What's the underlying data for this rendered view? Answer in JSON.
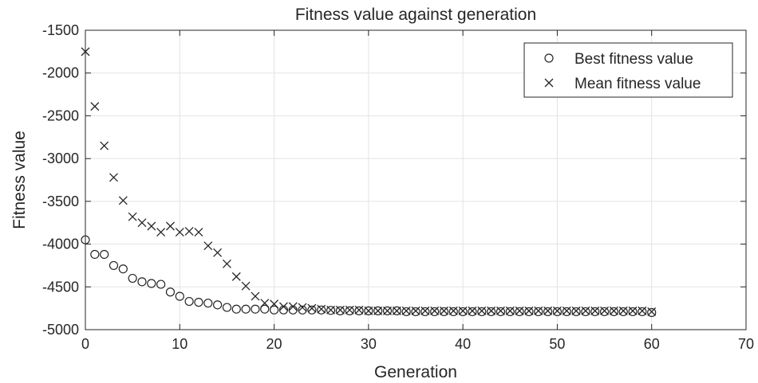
{
  "chart_data": {
    "type": "scatter",
    "title": "Fitness value against generation",
    "xlabel": "Generation",
    "ylabel": "Fitness value",
    "xlim": [
      0,
      70
    ],
    "ylim": [
      -5000,
      -1500
    ],
    "xticks": [
      "0",
      "10",
      "20",
      "30",
      "40",
      "50",
      "60",
      "70"
    ],
    "yticks": [
      "-5000",
      "-4500",
      "-4000",
      "-3500",
      "-3000",
      "-2500",
      "-2000",
      "-1500"
    ],
    "grid": true,
    "legend_position": "top-right",
    "series": [
      {
        "name": "Best fitness value",
        "marker": "circle",
        "color": "#262626",
        "x": [
          0,
          1,
          2,
          3,
          4,
          5,
          6,
          7,
          8,
          9,
          10,
          11,
          12,
          13,
          14,
          15,
          16,
          17,
          18,
          19,
          20,
          21,
          22,
          23,
          24,
          25,
          26,
          27,
          28,
          29,
          30,
          31,
          32,
          33,
          34,
          35,
          36,
          37,
          38,
          39,
          40,
          41,
          42,
          43,
          44,
          45,
          46,
          47,
          48,
          49,
          50,
          51,
          52,
          53,
          54,
          55,
          56,
          57,
          58,
          59,
          60
        ],
        "y": [
          -3950,
          -4120,
          -4120,
          -4250,
          -4290,
          -4400,
          -4440,
          -4460,
          -4470,
          -4560,
          -4610,
          -4670,
          -4680,
          -4690,
          -4710,
          -4740,
          -4760,
          -4760,
          -4760,
          -4760,
          -4770,
          -4770,
          -4770,
          -4770,
          -4770,
          -4770,
          -4775,
          -4780,
          -4780,
          -4780,
          -4780,
          -4780,
          -4780,
          -4780,
          -4790,
          -4790,
          -4790,
          -4790,
          -4790,
          -4790,
          -4790,
          -4790,
          -4790,
          -4790,
          -4790,
          -4790,
          -4790,
          -4790,
          -4790,
          -4790,
          -4790,
          -4790,
          -4790,
          -4790,
          -4790,
          -4790,
          -4790,
          -4790,
          -4790,
          -4790,
          -4800
        ]
      },
      {
        "name": "Mean fitness value",
        "marker": "x",
        "color": "#262626",
        "x": [
          0,
          1,
          2,
          3,
          4,
          5,
          6,
          7,
          8,
          9,
          10,
          11,
          12,
          13,
          14,
          15,
          16,
          17,
          18,
          19,
          20,
          21,
          22,
          23,
          24,
          25,
          26,
          27,
          28,
          29,
          30,
          31,
          32,
          33,
          34,
          35,
          36,
          37,
          38,
          39,
          40,
          41,
          42,
          43,
          44,
          45,
          46,
          47,
          48,
          49,
          50,
          51,
          52,
          53,
          54,
          55,
          56,
          57,
          58,
          59,
          60
        ],
        "y": [
          -1750,
          -2390,
          -2850,
          -3220,
          -3490,
          -3680,
          -3750,
          -3790,
          -3860,
          -3790,
          -3860,
          -3850,
          -3860,
          -4020,
          -4100,
          -4230,
          -4380,
          -4490,
          -4610,
          -4690,
          -4700,
          -4730,
          -4730,
          -4740,
          -4750,
          -4760,
          -4770,
          -4770,
          -4770,
          -4770,
          -4780,
          -4780,
          -4780,
          -4780,
          -4780,
          -4780,
          -4780,
          -4780,
          -4780,
          -4780,
          -4780,
          -4780,
          -4780,
          -4780,
          -4780,
          -4780,
          -4780,
          -4780,
          -4780,
          -4780,
          -4780,
          -4780,
          -4780,
          -4780,
          -4780,
          -4780,
          -4780,
          -4780,
          -4780,
          -4780,
          -4790
        ]
      }
    ]
  }
}
